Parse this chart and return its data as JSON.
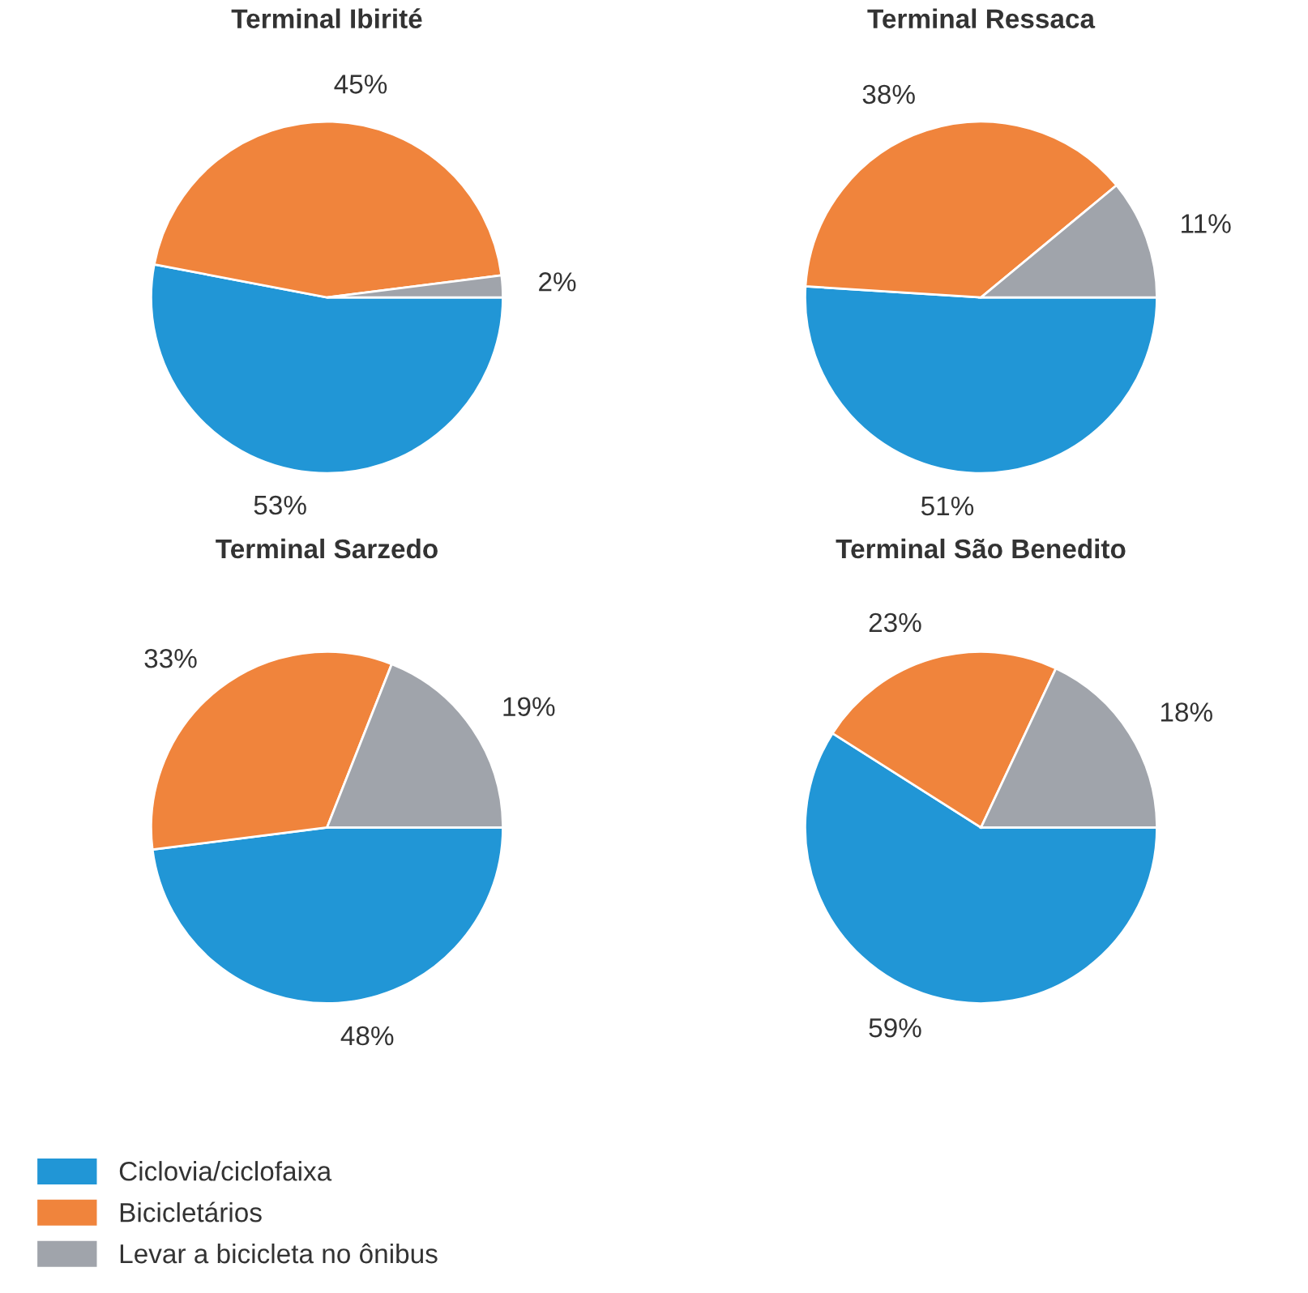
{
  "chart_data": [
    {
      "type": "pie",
      "title": "Terminal Ibirité",
      "categories": [
        "Ciclovia/ciclofaixa",
        "Bicicletários",
        "Levar a bicicleta no ônibus"
      ],
      "values": [
        53,
        45,
        2
      ],
      "colors": [
        "#2196d6",
        "#f0843c",
        "#a0a4ab"
      ],
      "value_labels": [
        "53%",
        "45%",
        "2%"
      ],
      "legend": "bottom left"
    },
    {
      "type": "pie",
      "title": "Terminal Ressaca",
      "categories": [
        null,
        null,
        null
      ],
      "values": [
        51,
        38,
        11
      ],
      "colors": [
        "#2196d6",
        "#f0843c",
        "#a0a4ab"
      ],
      "value_labels": [
        "51%",
        "38%",
        "11%"
      ]
    },
    {
      "type": "pie",
      "title": "Terminal Sarzedo",
      "categories": [
        null,
        null,
        null
      ],
      "values": [
        48,
        33,
        19
      ],
      "colors": [
        "#2196d6",
        "#f0843c",
        "#a0a4ab"
      ],
      "value_labels": [
        "48%",
        "33%",
        "19%"
      ]
    },
    {
      "type": "pie",
      "title": "Terminal São Benedito",
      "categories": [
        null,
        null,
        null
      ],
      "values": [
        59,
        23,
        18
      ],
      "colors": [
        "#2196d6",
        "#f0843c",
        "#a0a4ab"
      ],
      "value_labels": [
        "59%",
        "23%",
        "18%"
      ]
    }
  ]
}
